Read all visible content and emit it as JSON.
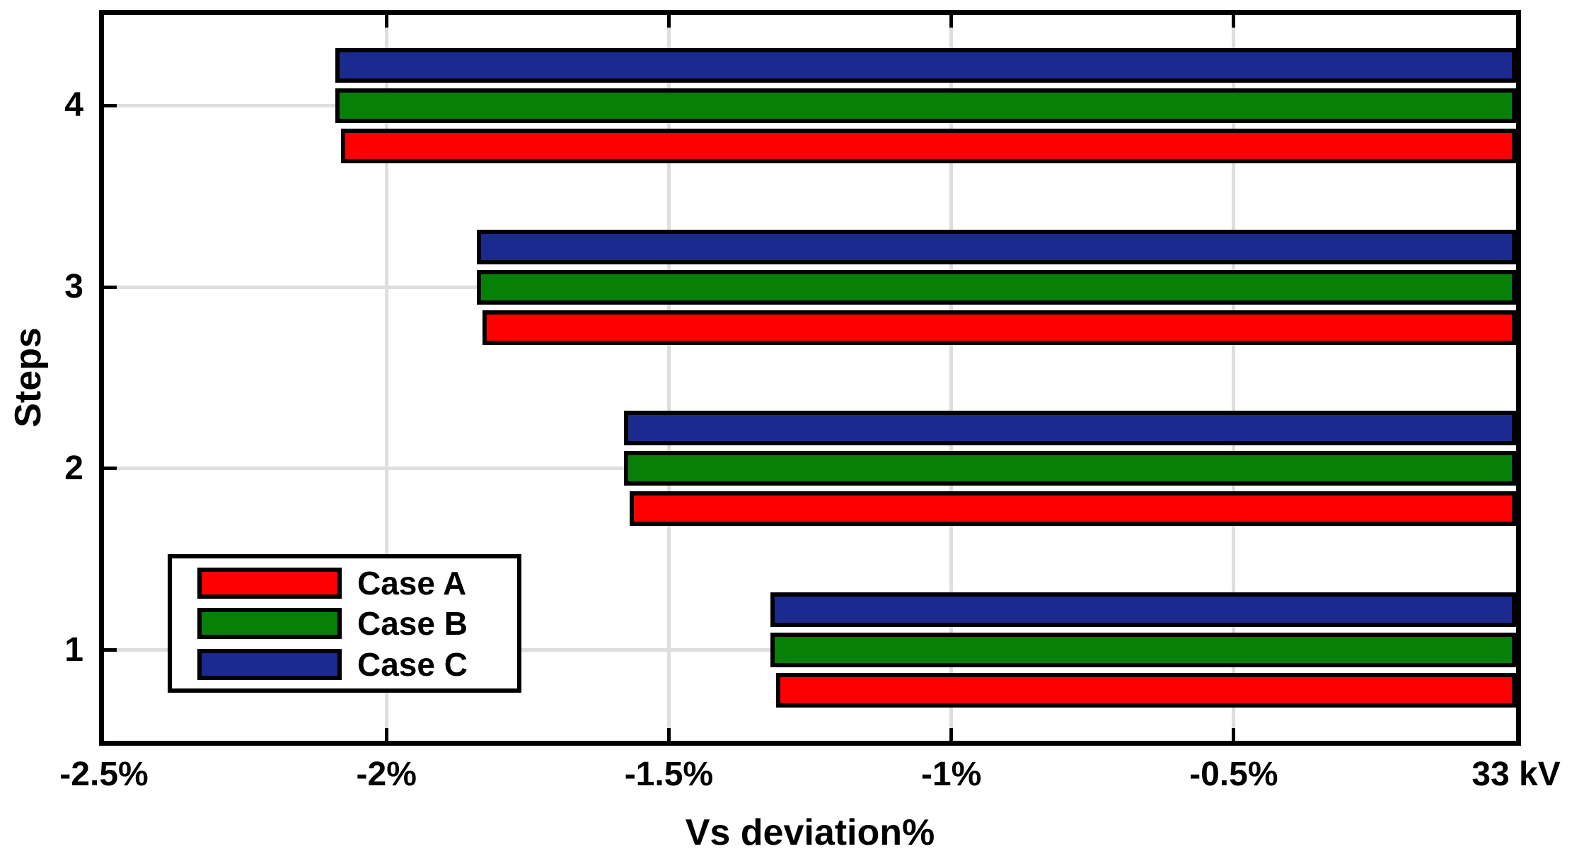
{
  "figure": {
    "background_color": "#ffffff",
    "axis_color": "#000000",
    "gridline_color": "#dedede"
  },
  "chart_data": {
    "type": "bar",
    "orientation": "horizontal",
    "title": "",
    "xlabel": "Vs deviation%",
    "ylabel": "Steps",
    "xlim": [
      -2.5,
      0
    ],
    "ylim": [
      0.5,
      4.5
    ],
    "grid": true,
    "categories": [
      "1",
      "2",
      "3",
      "4"
    ],
    "x_ticks": [
      {
        "value": -2.5,
        "label": "-2.5%"
      },
      {
        "value": -2.0,
        "label": "-2%"
      },
      {
        "value": -1.5,
        "label": "-1.5%"
      },
      {
        "value": -1.0,
        "label": "-1%"
      },
      {
        "value": -0.5,
        "label": "-0.5%"
      },
      {
        "value": 0.0,
        "label": "33 kV"
      }
    ],
    "series": [
      {
        "name": "Case A",
        "color": "#ff0000",
        "values": [
          -1.31,
          -1.57,
          -1.83,
          -2.08
        ]
      },
      {
        "name": "Case B",
        "color": "#068006",
        "values": [
          -1.32,
          -1.58,
          -1.84,
          -2.09
        ]
      },
      {
        "name": "Case C",
        "color": "#1b2a8e",
        "values": [
          -1.32,
          -1.58,
          -1.84,
          -2.09
        ]
      }
    ],
    "legend": {
      "position": "southwest",
      "entries": [
        "Case A",
        "Case B",
        "Case C"
      ]
    }
  }
}
